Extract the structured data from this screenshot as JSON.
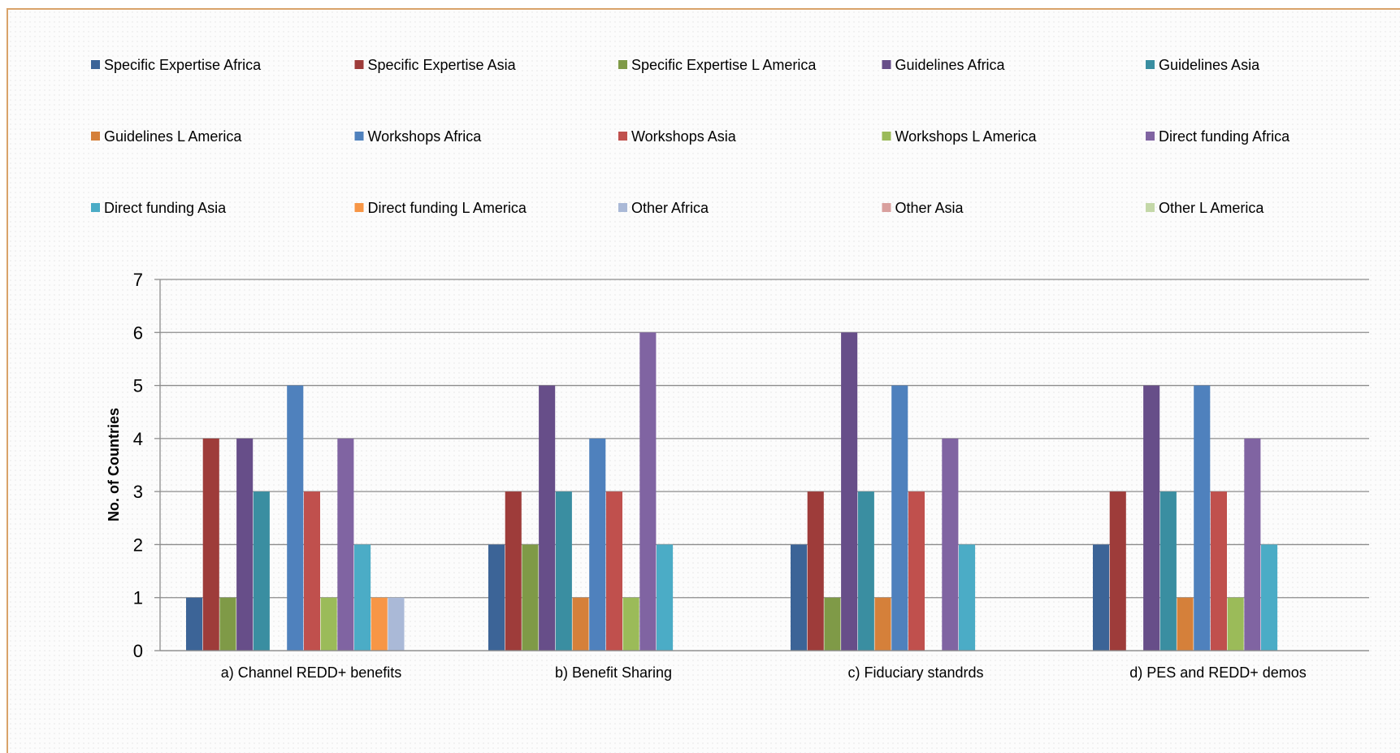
{
  "chart_data": {
    "type": "bar",
    "title": "",
    "xlabel": "",
    "ylabel": "No. of Countries",
    "ylim": [
      0,
      7
    ],
    "yticks": [
      0,
      1,
      2,
      3,
      4,
      5,
      6,
      7
    ],
    "grid": true,
    "legend_position": "top",
    "categories": [
      "a) Channel REDD+ benefits",
      "b) Benefit Sharing",
      "c) Fiduciary standrds",
      "d) PES and REDD+ demos"
    ],
    "series": [
      {
        "name": "Specific Expertise Africa",
        "color": "#3c6497",
        "values": [
          1,
          2,
          2,
          2
        ]
      },
      {
        "name": "Specific Expertise Asia",
        "color": "#9e3c3a",
        "values": [
          4,
          3,
          3,
          3
        ]
      },
      {
        "name": "Specific Expertise L America",
        "color": "#7f9a47",
        "values": [
          1,
          2,
          1,
          0
        ]
      },
      {
        "name": "Guidelines Africa",
        "color": "#674e89",
        "values": [
          4,
          5,
          6,
          5
        ]
      },
      {
        "name": "Guidelines Asia",
        "color": "#3a8ea1",
        "values": [
          3,
          3,
          3,
          3
        ]
      },
      {
        "name": "Guidelines L America",
        "color": "#d5803a",
        "values": [
          0,
          1,
          1,
          1
        ]
      },
      {
        "name": "Workshops Africa",
        "color": "#4f81bd",
        "values": [
          5,
          4,
          5,
          5
        ]
      },
      {
        "name": "Workshops Asia",
        "color": "#c0504d",
        "values": [
          3,
          3,
          3,
          3
        ]
      },
      {
        "name": "Workshops L America",
        "color": "#9bbb59",
        "values": [
          1,
          1,
          0,
          1
        ]
      },
      {
        "name": "Direct funding Africa",
        "color": "#8064a2",
        "values": [
          4,
          6,
          4,
          4
        ]
      },
      {
        "name": "Direct funding Asia",
        "color": "#4bacc6",
        "values": [
          2,
          2,
          2,
          2
        ]
      },
      {
        "name": "Direct funding L America",
        "color": "#f79646",
        "values": [
          1,
          0,
          0,
          0
        ]
      },
      {
        "name": "Other Africa",
        "color": "#aab9d7",
        "values": [
          1,
          0,
          0,
          0
        ]
      },
      {
        "name": "Other Asia",
        "color": "#d9a09e",
        "values": [
          0,
          0,
          0,
          0
        ]
      },
      {
        "name": "Other L America",
        "color": "#c4d8a8",
        "values": [
          0,
          0,
          0,
          0
        ]
      }
    ]
  }
}
